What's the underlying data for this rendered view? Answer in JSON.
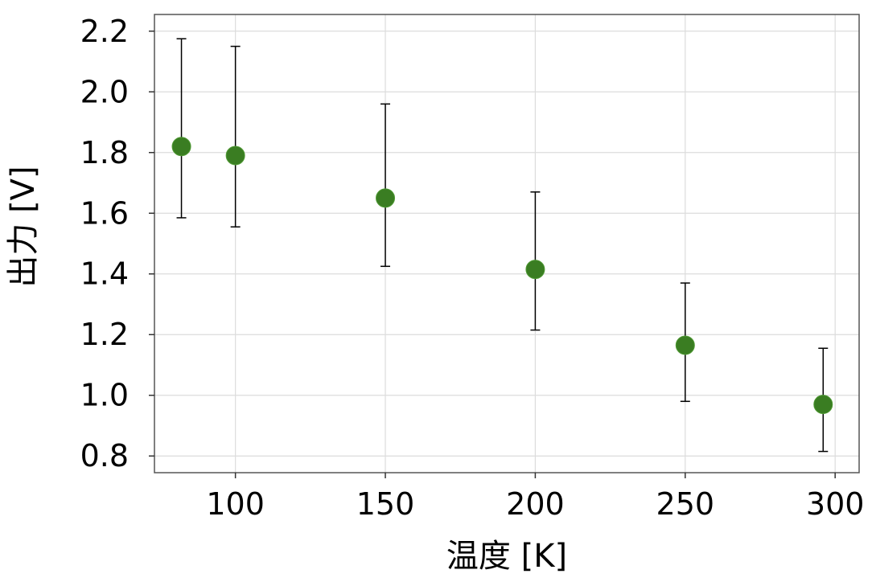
{
  "chart_data": {
    "type": "scatter",
    "title": "",
    "xlabel": "温度 [K]",
    "ylabel": "出力 [V]",
    "xlim": [
      73,
      308
    ],
    "ylim": [
      0.745,
      2.255
    ],
    "xticks": [
      100,
      150,
      200,
      250,
      300
    ],
    "xtick_labels": [
      "100",
      "150",
      "200",
      "250",
      "300"
    ],
    "yticks": [
      0.8,
      1.0,
      1.2,
      1.4,
      1.6,
      1.8,
      2.0,
      2.2
    ],
    "ytick_labels": [
      "0.8",
      "1.0",
      "1.2",
      "1.4",
      "1.6",
      "1.8",
      "2.0",
      "2.2"
    ],
    "grid": true,
    "legend": "none",
    "marker_color": "#3a7d22",
    "errorbar_color": "#000000",
    "series": [
      {
        "x": [
          82,
          100,
          150,
          200,
          250,
          296
        ],
        "y": [
          1.82,
          1.79,
          1.65,
          1.415,
          1.165,
          0.97
        ],
        "yerr_low": [
          1.585,
          1.555,
          1.425,
          1.215,
          0.98,
          0.815
        ],
        "yerr_high": [
          2.175,
          2.15,
          1.96,
          1.67,
          1.37,
          1.155
        ]
      }
    ]
  }
}
